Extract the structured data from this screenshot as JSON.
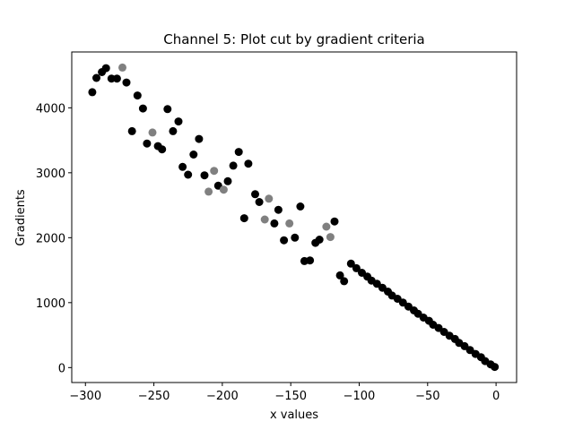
{
  "chart_data": {
    "type": "scatter",
    "title": "Channel 5: Plot cut by gradient criteria",
    "xlabel": "x values",
    "ylabel": "Gradients",
    "xlim": [
      -310,
      15
    ],
    "ylim": [
      -230,
      4860
    ],
    "xticks": [
      -300,
      -250,
      -200,
      -150,
      -100,
      -50,
      0
    ],
    "xtick_labels": [
      "−300",
      "−250",
      "−200",
      "−150",
      "−100",
      "−50",
      "0"
    ],
    "yticks": [
      0,
      1000,
      2000,
      3000,
      4000
    ],
    "ytick_labels": [
      "0",
      "1000",
      "2000",
      "3000",
      "4000"
    ],
    "grid": false,
    "colors": {
      "kept": "#000000",
      "cut": "#808080"
    },
    "series": [
      {
        "color": "#000000",
        "points": [
          [
            -295,
            4240
          ],
          [
            -292,
            4460
          ],
          [
            -288,
            4550
          ],
          [
            -285,
            4610
          ],
          [
            -281,
            4450
          ],
          [
            -277,
            4450
          ],
          [
            -270,
            4390
          ],
          [
            -266,
            3640
          ],
          [
            -262,
            4190
          ],
          [
            -258,
            3990
          ],
          [
            -255,
            3450
          ],
          [
            -247,
            3410
          ],
          [
            -244,
            3360
          ],
          [
            -240,
            3980
          ],
          [
            -236,
            3640
          ],
          [
            -232,
            3790
          ],
          [
            -229,
            3090
          ],
          [
            -225,
            2970
          ],
          [
            -221,
            3280
          ],
          [
            -217,
            3520
          ],
          [
            -213,
            2960
          ],
          [
            -203,
            2800
          ],
          [
            -196,
            2870
          ],
          [
            -192,
            3110
          ],
          [
            -188,
            3320
          ],
          [
            -184,
            2300
          ],
          [
            -181,
            3140
          ],
          [
            -176,
            2670
          ],
          [
            -173,
            2550
          ],
          [
            -162,
            2220
          ],
          [
            -159,
            2430
          ],
          [
            -155,
            1960
          ],
          [
            -147,
            2000
          ],
          [
            -143,
            2480
          ],
          [
            -140,
            1640
          ],
          [
            -136,
            1650
          ],
          [
            -132,
            1920
          ],
          [
            -129,
            1970
          ],
          [
            -118,
            2250
          ],
          [
            -114,
            1420
          ],
          [
            -111,
            1330
          ],
          [
            -106,
            1600
          ],
          [
            -102,
            1530
          ],
          [
            -98,
            1460
          ],
          [
            -94,
            1400
          ],
          [
            -91,
            1340
          ],
          [
            -87,
            1290
          ],
          [
            -83,
            1230
          ],
          [
            -79,
            1170
          ],
          [
            -76,
            1110
          ],
          [
            -72,
            1060
          ],
          [
            -68,
            1000
          ],
          [
            -64,
            940
          ],
          [
            -60,
            880
          ],
          [
            -57,
            830
          ],
          [
            -53,
            770
          ],
          [
            -49,
            720
          ],
          [
            -46,
            660
          ],
          [
            -42,
            610
          ],
          [
            -38,
            550
          ],
          [
            -34,
            490
          ],
          [
            -30,
            440
          ],
          [
            -27,
            380
          ],
          [
            -23,
            330
          ],
          [
            -19,
            270
          ],
          [
            -15,
            210
          ],
          [
            -11,
            160
          ],
          [
            -8,
            100
          ],
          [
            -4,
            50
          ],
          [
            -1,
            10
          ]
        ]
      },
      {
        "color": "#808080",
        "points": [
          [
            -273,
            4620
          ],
          [
            -251,
            3620
          ],
          [
            -210,
            2710
          ],
          [
            -206,
            3030
          ],
          [
            -199,
            2740
          ],
          [
            -169,
            2280
          ],
          [
            -166,
            2600
          ],
          [
            -151,
            2220
          ],
          [
            -124,
            2170
          ],
          [
            -121,
            2010
          ]
        ]
      }
    ]
  }
}
